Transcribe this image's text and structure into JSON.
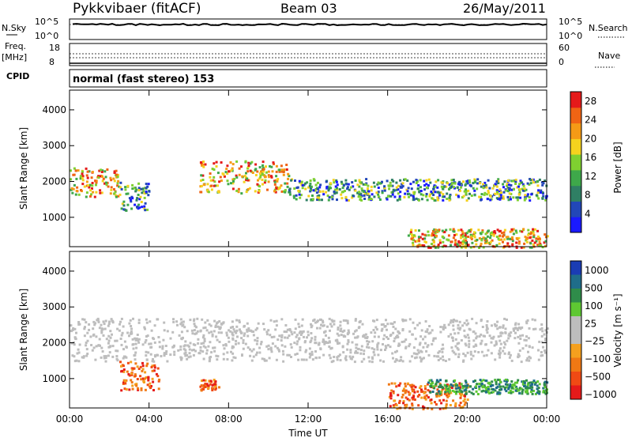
{
  "header": {
    "station": "Pykkvibaer (fitACF)",
    "beam": "Beam 03",
    "date": "26/May/2011"
  },
  "status_panel": {
    "nsky_label": "N.Sky",
    "nsky_ticks": [
      "10^5",
      "10^0"
    ],
    "nsearch_label": "N.Search",
    "freq_label_top": "Freq.",
    "freq_label_unit": "[MHz]",
    "freq_ticks": [
      "18",
      "8"
    ],
    "nave_label": "Nave",
    "nave_ticks": [
      "60",
      "0"
    ],
    "cpid_label": "CPID",
    "cpid_text": "normal (fast stereo) 153"
  },
  "colors": {
    "power_scale": [
      "#1a1aff",
      "#2247b8",
      "#2f7f64",
      "#3ea84a",
      "#7fd030",
      "#f5d21e",
      "#f59a16",
      "#f06414",
      "#e51a1a"
    ],
    "velocity_scale": [
      "#1a3cb4",
      "#1f6d8a",
      "#2f8c4a",
      "#5ec832",
      "#bdbdbd",
      "#bdbdbd",
      "#f5a01e",
      "#f07814",
      "#f04a14",
      "#e51a1a"
    ]
  },
  "chart_data": [
    {
      "type": "heatmap",
      "title": "Power",
      "ylabel": "Slant Range [km]",
      "xlabel": "Time UT",
      "x_ticks": [
        "00:00",
        "04:00",
        "08:00",
        "12:00",
        "16:00",
        "20:00",
        "00:00"
      ],
      "x_range_hours": [
        0,
        24
      ],
      "y_ticks": [
        1000,
        2000,
        3000,
        4000
      ],
      "ylim": [
        180,
        4550
      ],
      "colorbar": {
        "label": "Power [dB]",
        "ticks": [
          4,
          8,
          12,
          16,
          20,
          24,
          28
        ],
        "range": [
          0,
          30
        ]
      },
      "echo_bands": [
        {
          "t": [
            0,
            2.5
          ],
          "range_km": [
            1600,
            2400
          ],
          "level": "high"
        },
        {
          "t": [
            2.5,
            4
          ],
          "range_km": [
            1200,
            2000
          ],
          "level": "medium"
        },
        {
          "t": [
            6.5,
            11
          ],
          "range_km": [
            1700,
            2600
          ],
          "level": "high"
        },
        {
          "t": [
            11,
            24
          ],
          "range_km": [
            1500,
            2100
          ],
          "level": "medium"
        },
        {
          "t": [
            17,
            24
          ],
          "range_km": [
            180,
            700
          ],
          "level": "high"
        }
      ]
    },
    {
      "type": "heatmap",
      "title": "Velocity",
      "ylabel": "Slant Range [km]",
      "xlabel": "Time UT",
      "x_ticks": [
        "00:00",
        "04:00",
        "08:00",
        "12:00",
        "16:00",
        "20:00",
        "00:00"
      ],
      "x_range_hours": [
        0,
        24
      ],
      "y_ticks": [
        1000,
        2000,
        3000,
        4000
      ],
      "ylim": [
        180,
        4550
      ],
      "colorbar": {
        "label": "Velocity [m s⁻¹]",
        "ticks": [
          "1000",
          "500",
          "100",
          "25",
          "−25",
          "−100",
          "−500",
          "−1000"
        ]
      },
      "echo_bands": [
        {
          "t": [
            0,
            24
          ],
          "range_km": [
            1500,
            2700
          ],
          "level": "ground-scatter"
        },
        {
          "t": [
            2.5,
            4.5
          ],
          "range_km": [
            700,
            1500
          ],
          "level": "negative"
        },
        {
          "t": [
            6.5,
            7.5
          ],
          "range_km": [
            700,
            1000
          ],
          "level": "negative"
        },
        {
          "t": [
            16,
            20
          ],
          "range_km": [
            180,
            900
          ],
          "level": "negative"
        },
        {
          "t": [
            18,
            24
          ],
          "range_km": [
            600,
            1000
          ],
          "level": "positive"
        }
      ]
    }
  ],
  "axes": {
    "time_label": "Time UT"
  }
}
